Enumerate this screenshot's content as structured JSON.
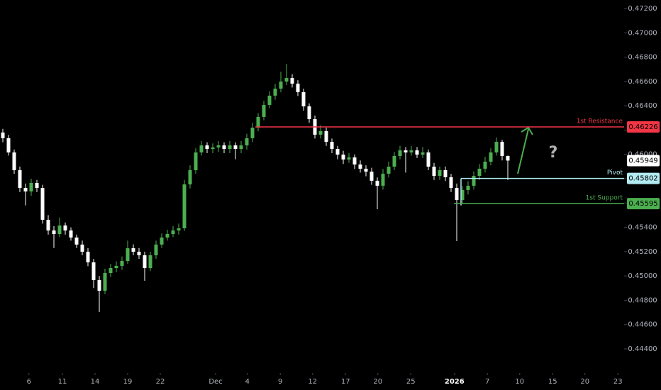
{
  "chart_data": {
    "type": "candlestick",
    "up_color": "#4caf50",
    "down_color": "#ffffff",
    "open": [
      0.4618,
      0.46133,
      0.46016,
      0.4587,
      0.45724,
      0.45695,
      0.45765,
      0.45724,
      0.45462,
      0.45374,
      0.45345,
      0.45415,
      0.45374,
      0.45316,
      0.45258,
      0.45199,
      0.45112,
      0.44966,
      0.44878,
      0.45024,
      0.45065,
      0.45083,
      0.45123,
      0.45228,
      0.45199,
      0.4517,
      0.45065,
      0.4517,
      0.45258,
      0.45316,
      0.45345,
      0.45374,
      0.45392,
      0.45753,
      0.4587,
      0.46016,
      0.46074,
      0.46045,
      0.46057,
      0.46074,
      0.46045,
      0.46074,
      0.46045,
      0.46074,
      0.46133,
      0.4622,
      0.46308,
      0.46407,
      0.46483,
      0.46541,
      0.46599,
      0.46628,
      0.46582,
      0.46512,
      0.46395,
      0.4629,
      0.46162,
      0.46191,
      0.46103,
      0.46045,
      0.45998,
      0.45958,
      0.45975,
      0.45917,
      0.45882,
      0.45858,
      0.45783,
      0.45742,
      0.45841,
      0.45899,
      0.45987,
      0.46033,
      0.46016,
      0.46033,
      0.45998,
      0.46016,
      0.45899,
      0.45823,
      0.4587,
      0.45812,
      0.45724,
      0.45625,
      0.45707,
      0.45742,
      0.45823,
      0.45882,
      0.4594,
      0.46016,
      0.46103,
      0.45987
    ],
    "high": [
      0.4621,
      0.4616,
      0.4604,
      0.459,
      0.4576,
      0.458,
      0.4579,
      0.4575,
      0.455,
      0.4541,
      0.4548,
      0.4544,
      0.454,
      0.4534,
      0.4529,
      0.4523,
      0.4514,
      0.45,
      0.4506,
      0.451,
      0.4512,
      0.4516,
      0.4529,
      0.4526,
      0.4523,
      0.452,
      0.452,
      0.4529,
      0.4535,
      0.4538,
      0.4541,
      0.4543,
      0.4579,
      0.4591,
      0.4605,
      0.4611,
      0.461,
      0.4609,
      0.4611,
      0.461,
      0.4611,
      0.461,
      0.4611,
      0.4617,
      0.4626,
      0.4634,
      0.4644,
      0.4652,
      0.4658,
      0.4668,
      0.46745,
      0.4666,
      0.4661,
      0.4654,
      0.4642,
      0.4632,
      0.4624,
      0.4622,
      0.4613,
      0.4607,
      0.4603,
      0.4601,
      0.46,
      0.4595,
      0.4591,
      0.4589,
      0.4581,
      0.4588,
      0.4594,
      0.4602,
      0.4607,
      0.4606,
      0.4607,
      0.4606,
      0.4606,
      0.4604,
      0.4593,
      0.459,
      0.459,
      0.4584,
      0.4576,
      0.4574,
      0.4578,
      0.4586,
      0.4592,
      0.4598,
      0.4605,
      0.4614,
      0.4612,
      0.4599
    ],
    "low": [
      0.461,
      0.4599,
      0.4584,
      0.4569,
      0.4558,
      0.4566,
      0.4569,
      0.4543,
      0.4534,
      0.4523,
      0.4532,
      0.4534,
      0.4529,
      0.4523,
      0.4517,
      0.4508,
      0.449,
      0.44703,
      0.4485,
      0.4499,
      0.4503,
      0.4505,
      0.451,
      0.4517,
      0.4514,
      0.4496,
      0.4504,
      0.4514,
      0.4523,
      0.4529,
      0.4532,
      0.4534,
      0.4537,
      0.4572,
      0.4584,
      0.4599,
      0.4601,
      0.4601,
      0.4602,
      0.4601,
      0.4601,
      0.4596,
      0.4601,
      0.4604,
      0.461,
      0.4619,
      0.4628,
      0.4638,
      0.4645,
      0.4651,
      0.4657,
      0.4655,
      0.4648,
      0.4636,
      0.4626,
      0.4613,
      0.4613,
      0.4607,
      0.4601,
      0.4596,
      0.4592,
      0.4593,
      0.4588,
      0.4585,
      0.4582,
      0.4575,
      0.45549,
      0.4571,
      0.4581,
      0.4587,
      0.4596,
      0.4585,
      0.4599,
      0.4597,
      0.4597,
      0.4587,
      0.4579,
      0.4579,
      0.4578,
      0.4569,
      0.45287,
      0.4559,
      0.4567,
      0.4571,
      0.4579,
      0.4585,
      0.4591,
      0.4599,
      0.4595,
      0.4579
    ],
    "close": [
      0.46133,
      0.46016,
      0.4587,
      0.45724,
      0.45695,
      0.45765,
      0.45724,
      0.45462,
      0.45374,
      0.45345,
      0.45415,
      0.45374,
      0.45316,
      0.45258,
      0.45199,
      0.45112,
      0.44966,
      0.44878,
      0.45024,
      0.45065,
      0.45083,
      0.45123,
      0.45228,
      0.45199,
      0.4517,
      0.45065,
      0.4517,
      0.45258,
      0.45316,
      0.45345,
      0.45374,
      0.45392,
      0.45753,
      0.4587,
      0.46016,
      0.46074,
      0.46045,
      0.46057,
      0.46074,
      0.46045,
      0.46074,
      0.46045,
      0.46074,
      0.46133,
      0.4622,
      0.46308,
      0.46407,
      0.46483,
      0.46541,
      0.46599,
      0.46628,
      0.46582,
      0.46512,
      0.46395,
      0.4629,
      0.46162,
      0.46191,
      0.46103,
      0.46045,
      0.45998,
      0.45958,
      0.45975,
      0.45917,
      0.45882,
      0.45858,
      0.45783,
      0.45742,
      0.45841,
      0.45899,
      0.45987,
      0.46033,
      0.46016,
      0.46033,
      0.45998,
      0.46016,
      0.45899,
      0.45823,
      0.4587,
      0.45812,
      0.45724,
      0.45625,
      0.45707,
      0.45742,
      0.45823,
      0.45882,
      0.4594,
      0.46016,
      0.46103,
      0.45987,
      0.45949
    ],
    "xlim": [
      -0.5,
      109.5
    ],
    "xticks": [
      {
        "value": 4.6,
        "label": "6"
      },
      {
        "value": 10.5,
        "label": "11"
      },
      {
        "value": 16.25,
        "label": "14"
      },
      {
        "value": 22,
        "label": "19"
      },
      {
        "value": 27.75,
        "label": "22"
      },
      {
        "value": 37.5,
        "label": "Dec"
      },
      {
        "value": 43.1,
        "label": "4"
      },
      {
        "value": 48.9,
        "label": "9"
      },
      {
        "value": 54.6,
        "label": "12"
      },
      {
        "value": 60.4,
        "label": "17"
      },
      {
        "value": 66.1,
        "label": "20"
      },
      {
        "value": 71.9,
        "label": "25"
      },
      {
        "value": 79.6,
        "label": "2026"
      },
      {
        "value": 85.4,
        "label": "7"
      },
      {
        "value": 91.1,
        "label": "10"
      },
      {
        "value": 96.9,
        "label": "15"
      },
      {
        "value": 102.6,
        "label": "20"
      },
      {
        "value": 108.4,
        "label": "23"
      }
    ],
    "ylim": [
      0.444,
      0.472
    ],
    "yticks": [
      {
        "value": 0.472,
        "label": "0.47200"
      },
      {
        "value": 0.47,
        "label": "0.47000"
      },
      {
        "value": 0.468,
        "label": "0.46800"
      },
      {
        "value": 0.466,
        "label": "0.46600"
      },
      {
        "value": 0.464,
        "label": "0.46400"
      },
      {
        "value": 0.462,
        "label": "0.46200"
      },
      {
        "value": 0.46,
        "label": "0.46000"
      },
      {
        "value": 0.458,
        "label": "0.45800"
      },
      {
        "value": 0.456,
        "label": "0.45600"
      },
      {
        "value": 0.454,
        "label": "0.45400"
      },
      {
        "value": 0.452,
        "label": "0.45200"
      },
      {
        "value": 0.45,
        "label": "0.45000"
      },
      {
        "value": 0.448,
        "label": "0.44800"
      },
      {
        "value": 0.446,
        "label": "0.44600"
      },
      {
        "value": 0.444,
        "label": "0.44400"
      }
    ],
    "levels": [
      {
        "name": "1st Resistance",
        "value": 0.46226,
        "value_label": "0.46226",
        "start": 44.5,
        "color": "#f23645"
      },
      {
        "name": "Pivot",
        "value": 0.45802,
        "value_label": "0.45802",
        "start": 80.75,
        "color": "#b2ebf2"
      },
      {
        "name": "1st Support",
        "value": 0.45595,
        "value_label": "0.45595",
        "start": 79.5,
        "color": "#4caf50"
      }
    ],
    "last_price": {
      "value": 0.45949,
      "label": "0.45949"
    },
    "annotation": "?"
  }
}
